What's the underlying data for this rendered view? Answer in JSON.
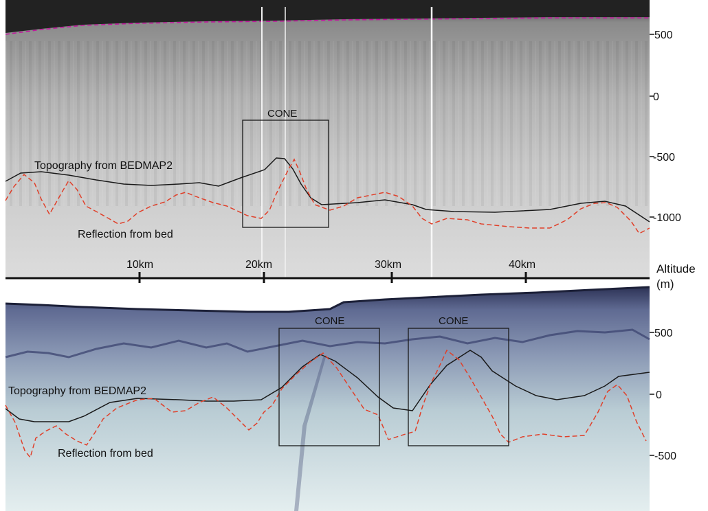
{
  "top_panel": {
    "box_label": "CONE",
    "topography_label": "Topography from BEDMAP2",
    "bed_label": "Reflection from bed",
    "y_ticks": [
      "500",
      "0",
      "-500",
      "-1000"
    ],
    "distance_ticks": [
      "10km",
      "20km",
      "30km",
      "40km"
    ]
  },
  "bottom_panel": {
    "box_labels": [
      "CONE",
      "CONE"
    ],
    "topography_label": "Topography from BEDMAP2",
    "bed_label": "Reflection from bed",
    "y_ticks": [
      "500",
      "0",
      "-500"
    ]
  },
  "axis_label": {
    "line1": "Altitude",
    "line2": "(m)"
  },
  "colors": {
    "topography_line": "#1a1a1a",
    "bed_trace": "#e0402a",
    "surface_trace_top": "#c2189e",
    "radar_top": "#c9c9c9",
    "radar_bottom_deep": "#3c4470",
    "radar_bottom_light": "#dbe8ea"
  }
}
